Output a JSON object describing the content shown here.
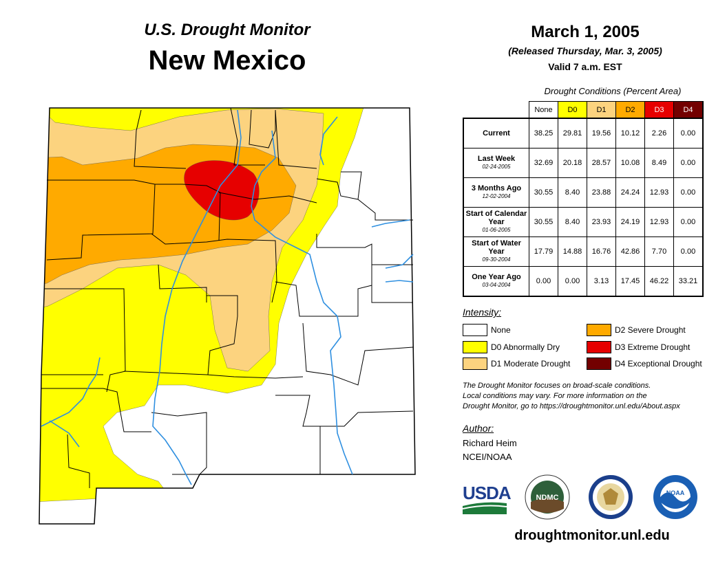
{
  "header": {
    "monitor_title": "U.S. Drought Monitor",
    "state": "New Mexico",
    "date": "March 1, 2005",
    "released": "(Released Thursday, Mar. 3, 2005)",
    "valid": "Valid 7 a.m. EST"
  },
  "table": {
    "caption": "Drought Conditions (Percent Area)",
    "columns": [
      "None",
      "D0",
      "D1",
      "D2",
      "D3",
      "D4"
    ],
    "column_colors": [
      "#ffffff",
      "#ffff00",
      "#fcd37f",
      "#ffaa00",
      "#e60000",
      "#730000"
    ],
    "rows": [
      {
        "label": "Current",
        "date": "",
        "values": [
          "38.25",
          "29.81",
          "19.56",
          "10.12",
          "2.26",
          "0.00"
        ]
      },
      {
        "label": "Last Week",
        "date": "02-24-2005",
        "values": [
          "32.69",
          "20.18",
          "28.57",
          "10.08",
          "8.49",
          "0.00"
        ]
      },
      {
        "label": "3 Months Ago",
        "date": "12-02-2004",
        "values": [
          "30.55",
          "8.40",
          "23.88",
          "24.24",
          "12.93",
          "0.00"
        ]
      },
      {
        "label": "Start of Calendar Year",
        "date": "01-06-2005",
        "values": [
          "30.55",
          "8.40",
          "23.93",
          "24.19",
          "12.93",
          "0.00"
        ]
      },
      {
        "label": "Start of Water Year",
        "date": "09-30-2004",
        "values": [
          "17.79",
          "14.88",
          "16.76",
          "42.86",
          "7.70",
          "0.00"
        ]
      },
      {
        "label": "One Year Ago",
        "date": "03-04-2004",
        "values": [
          "0.00",
          "0.00",
          "3.13",
          "17.45",
          "46.22",
          "33.21"
        ]
      }
    ]
  },
  "legend": {
    "title": "Intensity:",
    "items": [
      {
        "label": "None",
        "color": "#ffffff"
      },
      {
        "label": "D0 Abnormally Dry",
        "color": "#ffff00"
      },
      {
        "label": "D1 Moderate Drought",
        "color": "#fcd37f"
      },
      {
        "label": "D2 Severe Drought",
        "color": "#ffaa00"
      },
      {
        "label": "D3 Extreme Drought",
        "color": "#e60000"
      },
      {
        "label": "D4 Exceptional Drought",
        "color": "#730000"
      }
    ]
  },
  "note": {
    "line1": "The Drought Monitor focuses on broad-scale conditions.",
    "line2": "Local conditions may vary. For more information on the",
    "line3": "Drought Monitor, go to https://droughtmonitor.unl.edu/About.aspx"
  },
  "author": {
    "title": "Author:",
    "name": "Richard Heim",
    "org": "NCEI/NOAA"
  },
  "logos": {
    "usda": "USDA",
    "ndmc": "NDMC",
    "noaa": "NOAA"
  },
  "website": "droughtmonitor.unl.edu",
  "colors": {
    "river": "#2e8fe0",
    "border": "#000000"
  }
}
